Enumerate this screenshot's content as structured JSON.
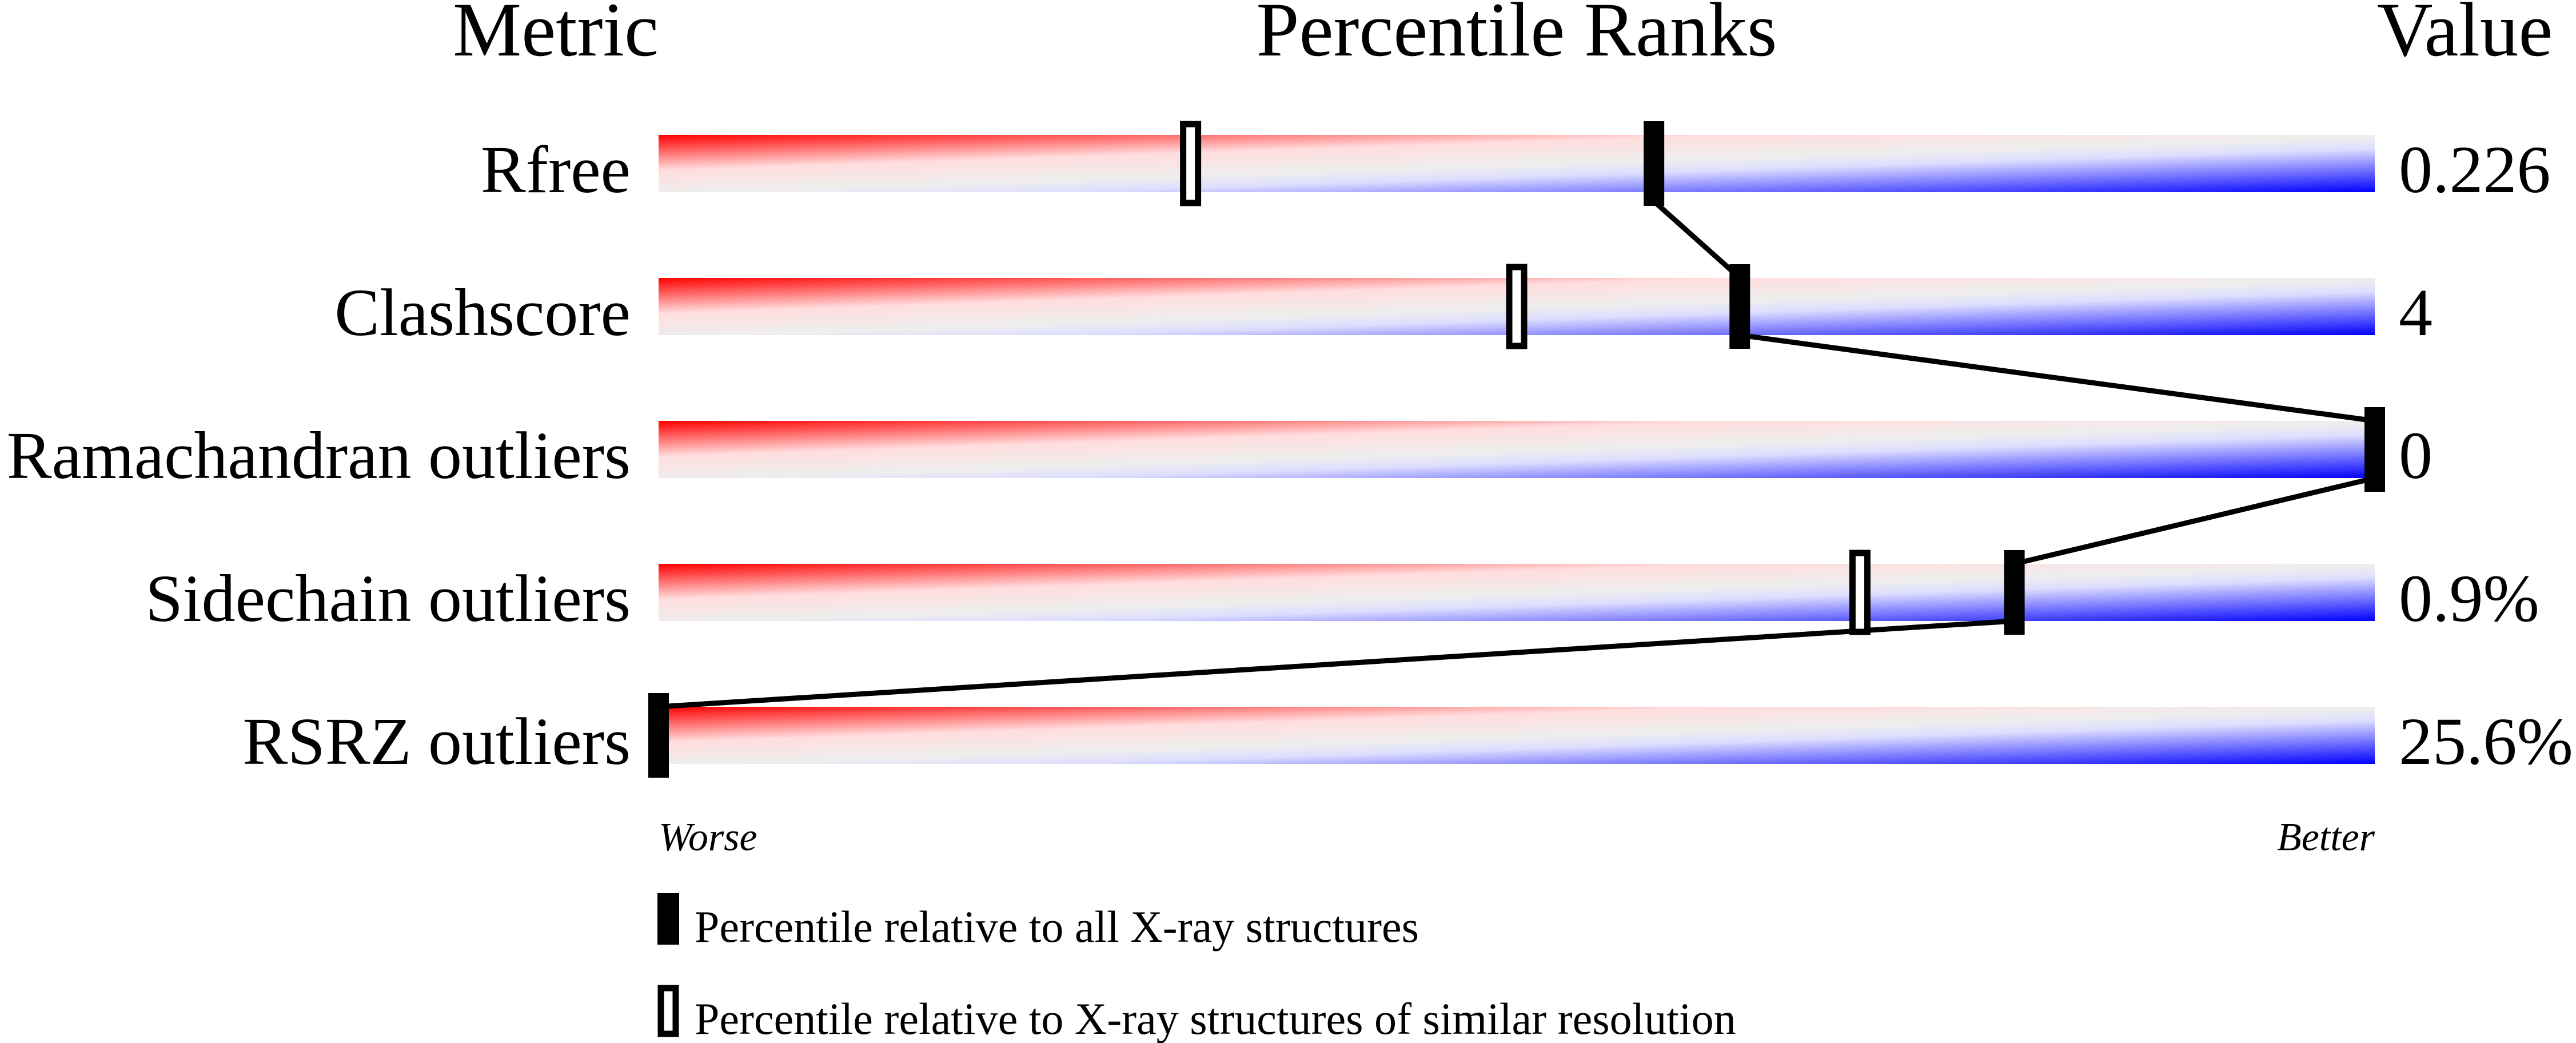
{
  "chart_data": {
    "type": "percentile-slider",
    "headers": {
      "metric": "Metric",
      "ranks": "Percentile Ranks",
      "value": "Value"
    },
    "xlim": [
      0,
      100
    ],
    "axis_labels": {
      "left": "Worse",
      "right": "Better"
    },
    "gradient_colors": [
      "#ff0000",
      "#ffdddd",
      "#eeeeee",
      "#ddddff",
      "#0000ff"
    ],
    "rows": [
      {
        "metric": "Rfree",
        "value": "0.226",
        "percentile_all": 58,
        "percentile_similar": 31
      },
      {
        "metric": "Clashscore",
        "value": "4",
        "percentile_all": 63,
        "percentile_similar": 50
      },
      {
        "metric": "Ramachandran outliers",
        "value": "0",
        "percentile_all": 100,
        "percentile_similar": null
      },
      {
        "metric": "Sidechain outliers",
        "value": "0.9%",
        "percentile_all": 79,
        "percentile_similar": 70
      },
      {
        "metric": "RSRZ outliers",
        "value": "25.6%",
        "percentile_all": 0,
        "percentile_similar": null
      }
    ],
    "legend": [
      {
        "marker": "filled",
        "label": "Percentile relative to all X-ray structures"
      },
      {
        "marker": "open",
        "label": "Percentile relative to X-ray structures of similar resolution"
      }
    ]
  }
}
